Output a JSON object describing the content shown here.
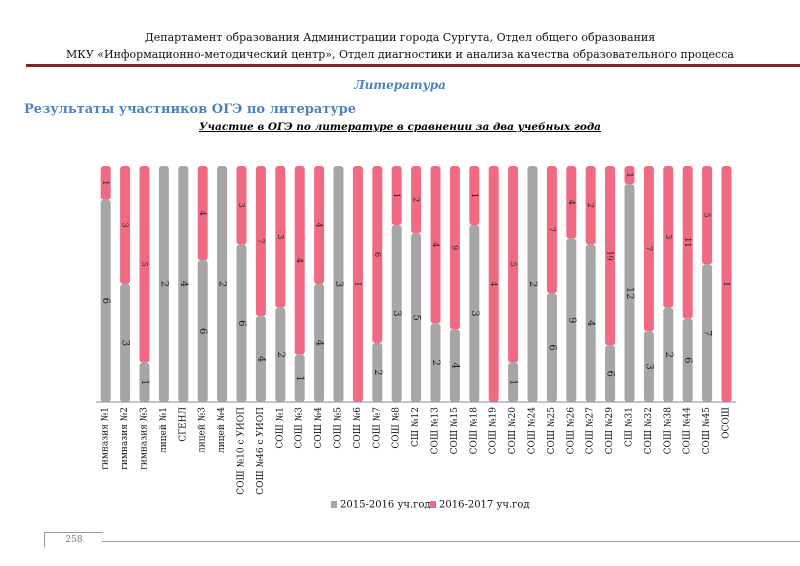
{
  "header": {
    "line1": "Департамент образования Администрации города Сургута, Отдел общего образования",
    "line2": "МКУ «Информационно-методический центр», Отдел диагностики и анализа качества образовательного процесса"
  },
  "section_title": "Литература",
  "subtitle": "Результаты участников ОГЭ по литературе",
  "page_number": "258",
  "colors": {
    "series1": "#a6a6a6",
    "series2": "#f06a84",
    "rule": "#7b2a2a",
    "heading": "#4f81bd"
  },
  "chart_data": {
    "type": "bar",
    "stacked_percent": true,
    "title": "Участие в ОГЭ по литературе в сравнении за два учебных года",
    "categories": [
      "гимназия №1",
      "гимназия №2",
      "гимназия №3",
      "лицей №1",
      "СГЕНЛ",
      "лицей №3",
      "лицей №4",
      "СОШ №10 с УИОП",
      "СОШ №46 с УИОП",
      "СОШ №1",
      "СОШ №3",
      "СОШ №4",
      "СОШ №5",
      "СОШ №6",
      "СОШ №7",
      "СОШ №8",
      "СШ №12",
      "СОШ №13",
      "СОШ №15",
      "СОШ №18",
      "СОШ №19",
      "СОШ №20",
      "СОШ №24",
      "СОШ №25",
      "СОШ №26",
      "СОШ №27",
      "СОШ №29",
      "СШ №31",
      "СОШ №32",
      "СОШ №38",
      "СОШ №44",
      "СОШ №45",
      "ОСОШ"
    ],
    "series": [
      {
        "name": "2015-2016 уч.год",
        "values": [
          6,
          3,
          1,
          2,
          4,
          6,
          2,
          6,
          4,
          2,
          1,
          4,
          3,
          null,
          2,
          3,
          5,
          2,
          4,
          3,
          null,
          1,
          2,
          6,
          9,
          4,
          6,
          12,
          3,
          2,
          6,
          7,
          null
        ]
      },
      {
        "name": "2016-2017 уч.год",
        "values": [
          1,
          3,
          5,
          null,
          null,
          4,
          null,
          3,
          7,
          3,
          4,
          4,
          null,
          1,
          6,
          1,
          2,
          4,
          9,
          1,
          4,
          5,
          null,
          7,
          4,
          2,
          19,
          1,
          7,
          3,
          11,
          5,
          1
        ]
      }
    ],
    "legend": [
      "2015-2016 уч.год",
      "2016-2017 уч.год"
    ],
    "legend_position": "bottom"
  }
}
